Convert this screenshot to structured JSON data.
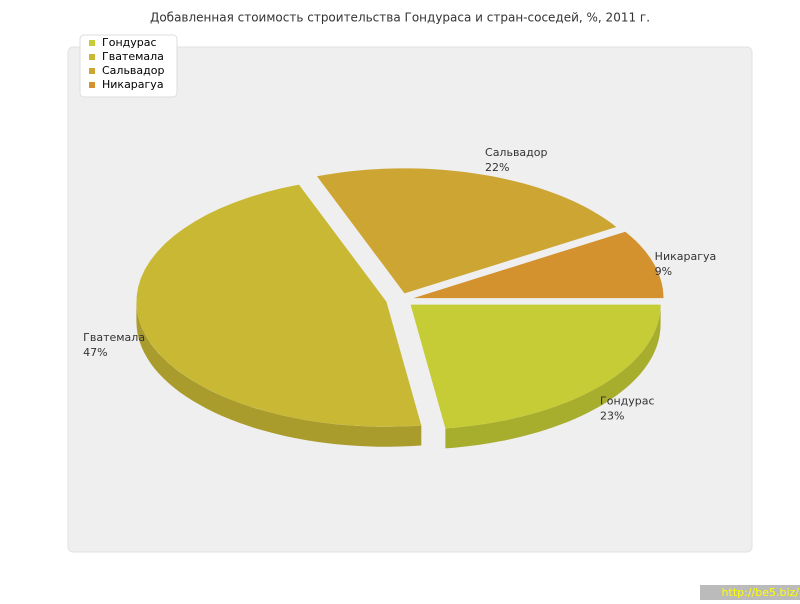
{
  "chart_data": {
    "type": "pie3d",
    "title": "Добавленная стоимость строительства Гондураса и стран-соседей, %, 2011 г.",
    "categories": [
      "Гондурас",
      "Гватемала",
      "Сальвадор",
      "Никарагуа"
    ],
    "values": [
      23,
      47,
      22,
      9
    ],
    "value_labels": [
      "23%",
      "47%",
      "22%",
      "9%"
    ],
    "colors": [
      "#c5cc35",
      "#c8b834",
      "#cda532",
      "#d4922f"
    ],
    "legend": "top-left"
  },
  "watermark": "http://be5.biz/"
}
